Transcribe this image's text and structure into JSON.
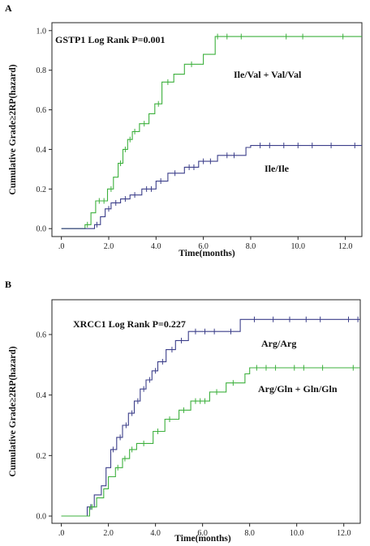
{
  "chart_data": [
    {
      "type": "line",
      "panel_label": "A",
      "title": "GSTP1  Log Rank P=0.001",
      "xlabel": "Time(months)",
      "ylabel": "Cumulative Grade≥2RP(hazard)",
      "xlim": [
        -0.4,
        12.7
      ],
      "ylim": [
        -0.04,
        1.04
      ],
      "xticks": [
        ".0",
        "2.0",
        "4.0",
        "6.0",
        "8.0",
        "10.0",
        "12.0"
      ],
      "yticks": [
        "0.0",
        "0.2",
        "0.4",
        "0.6",
        "0.8",
        "1.0"
      ],
      "grid": false,
      "legend": "none",
      "series": [
        {
          "name": "Ile/Val + Val/Val",
          "color": "#3db03d",
          "points": [
            [
              0,
              0
            ],
            [
              1.0,
              0
            ],
            [
              1.0,
              0.02
            ],
            [
              1.25,
              0.02
            ],
            [
              1.25,
              0.08
            ],
            [
              1.45,
              0.08
            ],
            [
              1.45,
              0.14
            ],
            [
              1.95,
              0.14
            ],
            [
              1.95,
              0.2
            ],
            [
              2.2,
              0.2
            ],
            [
              2.2,
              0.26
            ],
            [
              2.4,
              0.26
            ],
            [
              2.4,
              0.33
            ],
            [
              2.6,
              0.33
            ],
            [
              2.6,
              0.4
            ],
            [
              2.8,
              0.4
            ],
            [
              2.8,
              0.45
            ],
            [
              3.0,
              0.45
            ],
            [
              3.0,
              0.49
            ],
            [
              3.3,
              0.49
            ],
            [
              3.3,
              0.53
            ],
            [
              3.7,
              0.53
            ],
            [
              3.7,
              0.58
            ],
            [
              3.95,
              0.58
            ],
            [
              3.95,
              0.63
            ],
            [
              4.25,
              0.63
            ],
            [
              4.25,
              0.74
            ],
            [
              4.75,
              0.74
            ],
            [
              4.75,
              0.78
            ],
            [
              5.2,
              0.78
            ],
            [
              5.2,
              0.83
            ],
            [
              6.0,
              0.83
            ],
            [
              6.0,
              0.88
            ],
            [
              6.5,
              0.88
            ],
            [
              6.5,
              0.97
            ],
            [
              12.7,
              0.97
            ]
          ],
          "censored": [
            [
              1.1,
              0.02
            ],
            [
              1.6,
              0.14
            ],
            [
              1.8,
              0.14
            ],
            [
              2.1,
              0.2
            ],
            [
              2.5,
              0.33
            ],
            [
              2.7,
              0.4
            ],
            [
              2.9,
              0.45
            ],
            [
              3.1,
              0.49
            ],
            [
              3.5,
              0.53
            ],
            [
              4.1,
              0.63
            ],
            [
              4.5,
              0.74
            ],
            [
              5.5,
              0.83
            ],
            [
              6.6,
              0.97
            ],
            [
              7.0,
              0.97
            ],
            [
              7.6,
              0.97
            ],
            [
              9.5,
              0.97
            ],
            [
              10.2,
              0.97
            ],
            [
              11.9,
              0.97
            ]
          ]
        },
        {
          "name": "Ile/Ile",
          "color": "#3c3f8a",
          "points": [
            [
              0,
              0
            ],
            [
              1.4,
              0
            ],
            [
              1.4,
              0.02
            ],
            [
              1.65,
              0.02
            ],
            [
              1.65,
              0.06
            ],
            [
              1.85,
              0.06
            ],
            [
              1.85,
              0.1
            ],
            [
              2.1,
              0.1
            ],
            [
              2.1,
              0.13
            ],
            [
              2.5,
              0.13
            ],
            [
              2.5,
              0.15
            ],
            [
              2.9,
              0.15
            ],
            [
              2.9,
              0.17
            ],
            [
              3.4,
              0.17
            ],
            [
              3.4,
              0.2
            ],
            [
              4.0,
              0.2
            ],
            [
              4.0,
              0.24
            ],
            [
              4.5,
              0.24
            ],
            [
              4.5,
              0.28
            ],
            [
              5.2,
              0.28
            ],
            [
              5.2,
              0.31
            ],
            [
              5.8,
              0.31
            ],
            [
              5.8,
              0.34
            ],
            [
              6.6,
              0.34
            ],
            [
              6.6,
              0.37
            ],
            [
              7.8,
              0.37
            ],
            [
              7.8,
              0.41
            ],
            [
              8.0,
              0.41
            ],
            [
              8.0,
              0.42
            ],
            [
              12.7,
              0.42
            ]
          ],
          "censored": [
            [
              1.5,
              0.02
            ],
            [
              2.0,
              0.1
            ],
            [
              2.3,
              0.13
            ],
            [
              2.7,
              0.15
            ],
            [
              3.1,
              0.17
            ],
            [
              3.6,
              0.2
            ],
            [
              3.8,
              0.2
            ],
            [
              4.2,
              0.24
            ],
            [
              4.8,
              0.28
            ],
            [
              5.4,
              0.31
            ],
            [
              5.6,
              0.31
            ],
            [
              6.0,
              0.34
            ],
            [
              6.3,
              0.34
            ],
            [
              7.0,
              0.37
            ],
            [
              7.3,
              0.37
            ],
            [
              8.4,
              0.42
            ],
            [
              8.8,
              0.42
            ],
            [
              9.4,
              0.42
            ],
            [
              10.0,
              0.42
            ],
            [
              10.6,
              0.42
            ],
            [
              11.4,
              0.42
            ],
            [
              12.4,
              0.42
            ]
          ]
        }
      ]
    },
    {
      "type": "line",
      "panel_label": "B",
      "title": "XRCC1  Log Rank P=0.227",
      "xlabel": "Time(months)",
      "ylabel": "Cumulative Grade≥2RP(hazard)",
      "xlim": [
        -0.4,
        12.7
      ],
      "ylim": [
        -0.024,
        0.715
      ],
      "xticks": [
        ".0",
        "2.0",
        "4.0",
        "6.0",
        "8.0",
        "10.0",
        "12.0"
      ],
      "yticks": [
        "0.0",
        "0.2",
        "0.4",
        "0.6"
      ],
      "grid": false,
      "legend": "none",
      "series": [
        {
          "name": "Arg/Arg",
          "color": "#3c3f8a",
          "points": [
            [
              0,
              0
            ],
            [
              1.1,
              0
            ],
            [
              1.1,
              0.03
            ],
            [
              1.4,
              0.03
            ],
            [
              1.4,
              0.07
            ],
            [
              1.7,
              0.07
            ],
            [
              1.7,
              0.1
            ],
            [
              1.9,
              0.1
            ],
            [
              1.9,
              0.16
            ],
            [
              2.1,
              0.16
            ],
            [
              2.1,
              0.22
            ],
            [
              2.35,
              0.22
            ],
            [
              2.35,
              0.26
            ],
            [
              2.6,
              0.26
            ],
            [
              2.6,
              0.3
            ],
            [
              2.85,
              0.3
            ],
            [
              2.85,
              0.34
            ],
            [
              3.1,
              0.34
            ],
            [
              3.1,
              0.38
            ],
            [
              3.35,
              0.38
            ],
            [
              3.35,
              0.42
            ],
            [
              3.6,
              0.42
            ],
            [
              3.6,
              0.45
            ],
            [
              3.85,
              0.45
            ],
            [
              3.85,
              0.48
            ],
            [
              4.1,
              0.48
            ],
            [
              4.1,
              0.51
            ],
            [
              4.45,
              0.51
            ],
            [
              4.45,
              0.55
            ],
            [
              4.85,
              0.55
            ],
            [
              4.85,
              0.58
            ],
            [
              5.4,
              0.58
            ],
            [
              5.4,
              0.61
            ],
            [
              7.6,
              0.61
            ],
            [
              7.6,
              0.65
            ],
            [
              12.7,
              0.65
            ]
          ],
          "censored": [
            [
              1.25,
              0.03
            ],
            [
              2.2,
              0.22
            ],
            [
              2.5,
              0.26
            ],
            [
              2.75,
              0.3
            ],
            [
              3.0,
              0.34
            ],
            [
              3.25,
              0.38
            ],
            [
              3.5,
              0.42
            ],
            [
              3.75,
              0.45
            ],
            [
              4.0,
              0.48
            ],
            [
              4.3,
              0.51
            ],
            [
              4.7,
              0.55
            ],
            [
              5.1,
              0.58
            ],
            [
              5.7,
              0.61
            ],
            [
              6.1,
              0.61
            ],
            [
              6.5,
              0.61
            ],
            [
              7.2,
              0.61
            ],
            [
              8.2,
              0.65
            ],
            [
              9.0,
              0.65
            ],
            [
              9.7,
              0.65
            ],
            [
              10.4,
              0.65
            ],
            [
              11.0,
              0.65
            ],
            [
              12.2,
              0.65
            ],
            [
              12.6,
              0.65
            ]
          ]
        },
        {
          "name": "Arg/Gln + Gln/Gln",
          "color": "#3db03d",
          "points": [
            [
              0,
              0
            ],
            [
              1.2,
              0
            ],
            [
              1.2,
              0.03
            ],
            [
              1.5,
              0.03
            ],
            [
              1.5,
              0.06
            ],
            [
              1.8,
              0.06
            ],
            [
              1.8,
              0.09
            ],
            [
              2.0,
              0.09
            ],
            [
              2.0,
              0.13
            ],
            [
              2.3,
              0.13
            ],
            [
              2.3,
              0.16
            ],
            [
              2.6,
              0.16
            ],
            [
              2.6,
              0.19
            ],
            [
              2.9,
              0.19
            ],
            [
              2.9,
              0.22
            ],
            [
              3.2,
              0.22
            ],
            [
              3.2,
              0.24
            ],
            [
              3.9,
              0.24
            ],
            [
              3.9,
              0.28
            ],
            [
              4.4,
              0.28
            ],
            [
              4.4,
              0.32
            ],
            [
              5.0,
              0.32
            ],
            [
              5.0,
              0.35
            ],
            [
              5.5,
              0.35
            ],
            [
              5.5,
              0.38
            ],
            [
              6.3,
              0.38
            ],
            [
              6.3,
              0.41
            ],
            [
              7.0,
              0.41
            ],
            [
              7.0,
              0.44
            ],
            [
              7.8,
              0.44
            ],
            [
              7.8,
              0.47
            ],
            [
              8.0,
              0.47
            ],
            [
              8.0,
              0.49
            ],
            [
              12.7,
              0.49
            ]
          ],
          "censored": [
            [
              1.3,
              0.03
            ],
            [
              2.4,
              0.16
            ],
            [
              2.7,
              0.19
            ],
            [
              3.0,
              0.22
            ],
            [
              3.5,
              0.24
            ],
            [
              4.1,
              0.28
            ],
            [
              4.6,
              0.32
            ],
            [
              5.2,
              0.35
            ],
            [
              5.7,
              0.38
            ],
            [
              5.9,
              0.38
            ],
            [
              6.1,
              0.38
            ],
            [
              6.6,
              0.41
            ],
            [
              7.3,
              0.44
            ],
            [
              8.3,
              0.49
            ],
            [
              8.7,
              0.49
            ],
            [
              9.1,
              0.49
            ],
            [
              9.9,
              0.49
            ],
            [
              10.3,
              0.49
            ],
            [
              11.1,
              0.49
            ],
            [
              12.4,
              0.49
            ]
          ]
        }
      ]
    }
  ]
}
